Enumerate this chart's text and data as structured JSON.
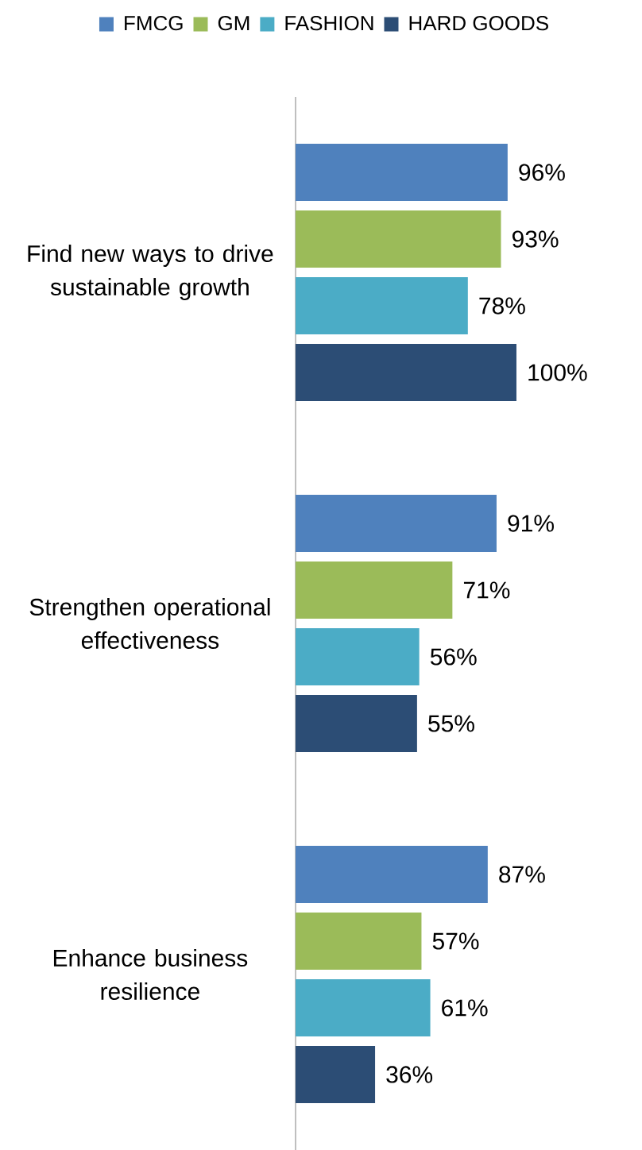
{
  "chart_data": {
    "type": "bar",
    "orientation": "horizontal",
    "legend": "top",
    "categories": [
      "Find new ways to drive sustainable growth",
      "Strengthen operational effectiveness",
      "Enhance business resilience"
    ],
    "series": [
      {
        "name": "FMCG",
        "color": "#4f81bd",
        "values": [
          96,
          91,
          87
        ],
        "value_labels": [
          "96%",
          "91%",
          "87%"
        ]
      },
      {
        "name": "GM",
        "color": "#9bbb59",
        "values": [
          93,
          71,
          57
        ],
        "value_labels": [
          "93%",
          "71%",
          "57%"
        ]
      },
      {
        "name": "FASHION",
        "color": "#4bacc6",
        "values": [
          78,
          56,
          61
        ],
        "value_labels": [
          "78%",
          "56%",
          "61%"
        ]
      },
      {
        "name": "HARD GOODS",
        "color": "#2c4d75",
        "values": [
          100,
          55,
          36
        ],
        "value_labels": [
          "100%",
          "55%",
          "36%"
        ]
      }
    ]
  }
}
